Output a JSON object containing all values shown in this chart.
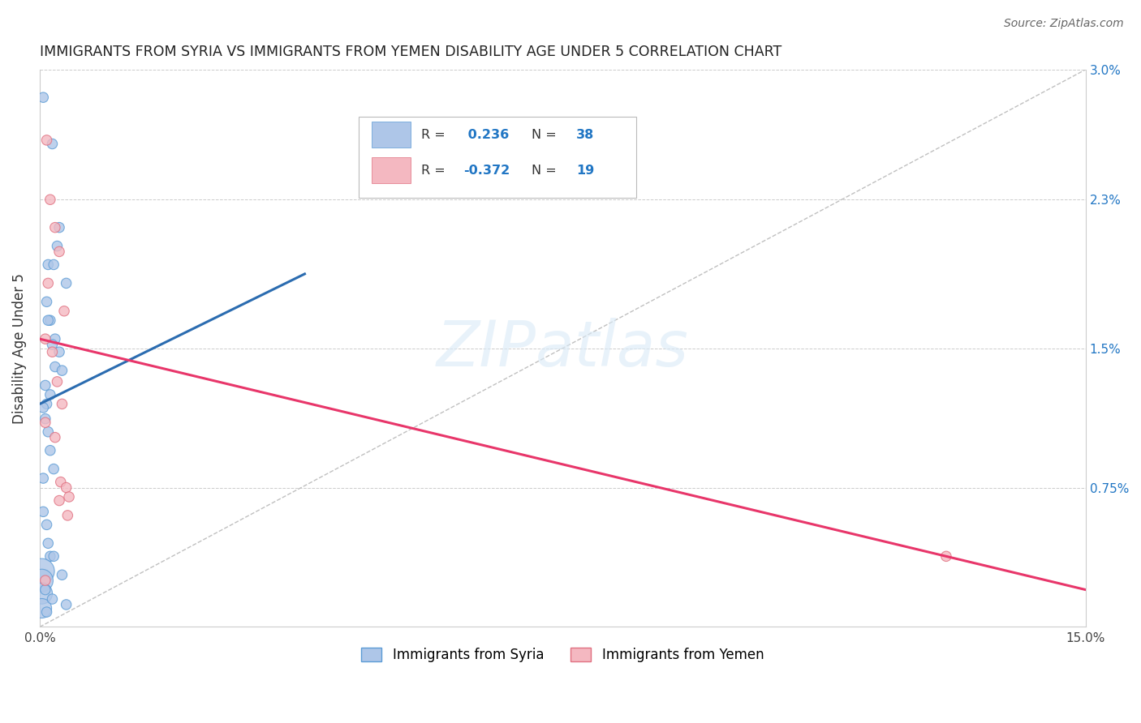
{
  "title": "IMMIGRANTS FROM SYRIA VS IMMIGRANTS FROM YEMEN DISABILITY AGE UNDER 5 CORRELATION CHART",
  "source": "Source: ZipAtlas.com",
  "ylabel": "Disability Age Under 5",
  "xlim": [
    0,
    0.15
  ],
  "ylim": [
    0,
    0.03
  ],
  "xticks": [
    0.0,
    0.03,
    0.06,
    0.09,
    0.12,
    0.15
  ],
  "xticklabels": [
    "0.0%",
    "",
    "",
    "",
    "",
    "15.0%"
  ],
  "ytick_vals": [
    0.0,
    0.0075,
    0.015,
    0.023,
    0.03
  ],
  "yticklabels_right": [
    "",
    "0.75%",
    "1.5%",
    "2.3%",
    "3.0%"
  ],
  "grid_color": "#cccccc",
  "background_color": "#ffffff",
  "syria_color": "#aec6e8",
  "syria_edge_color": "#5b9bd5",
  "yemen_color": "#f4b8c1",
  "yemen_edge_color": "#e07080",
  "syria_R": 0.236,
  "syria_N": 38,
  "yemen_R": -0.372,
  "yemen_N": 19,
  "legend_color": "#2176c4",
  "watermark_text": "ZIPatlas",
  "ref_line_color": "#c0c0c0",
  "syria_line_color": "#2b6cb0",
  "yemen_line_color": "#e8366a",
  "syria_x": [
    0.0005,
    0.0018,
    0.0028,
    0.0025,
    0.0012,
    0.002,
    0.0038,
    0.001,
    0.0015,
    0.0022,
    0.0012,
    0.0018,
    0.0028,
    0.0022,
    0.0032,
    0.0008,
    0.0015,
    0.001,
    0.0005,
    0.0008,
    0.0012,
    0.0015,
    0.002,
    0.0005,
    0.0005,
    0.001,
    0.0012,
    0.0015,
    0.0003,
    0.0003,
    0.0003,
    0.0003,
    0.002,
    0.0008,
    0.0032,
    0.0018,
    0.0038,
    0.001
  ],
  "syria_y": [
    0.0285,
    0.026,
    0.0215,
    0.0205,
    0.0195,
    0.0195,
    0.0185,
    0.0175,
    0.0165,
    0.0155,
    0.0165,
    0.0152,
    0.0148,
    0.014,
    0.0138,
    0.013,
    0.0125,
    0.012,
    0.0118,
    0.0112,
    0.0105,
    0.0095,
    0.0085,
    0.008,
    0.0062,
    0.0055,
    0.0045,
    0.0038,
    0.003,
    0.0025,
    0.0018,
    0.001,
    0.0038,
    0.002,
    0.0028,
    0.0015,
    0.0012,
    0.0008
  ],
  "syria_sizes": [
    80,
    80,
    80,
    80,
    80,
    80,
    80,
    80,
    80,
    80,
    80,
    80,
    80,
    80,
    80,
    80,
    80,
    80,
    80,
    80,
    80,
    80,
    80,
    80,
    80,
    80,
    80,
    80,
    500,
    400,
    350,
    300,
    80,
    80,
    80,
    80,
    80,
    80
  ],
  "yemen_x": [
    0.001,
    0.0015,
    0.0022,
    0.0028,
    0.0012,
    0.0035,
    0.0008,
    0.0018,
    0.0025,
    0.0032,
    0.0008,
    0.0022,
    0.003,
    0.0038,
    0.0042,
    0.0028,
    0.004,
    0.13,
    0.0008
  ],
  "yemen_y": [
    0.0262,
    0.023,
    0.0215,
    0.0202,
    0.0185,
    0.017,
    0.0155,
    0.0148,
    0.0132,
    0.012,
    0.011,
    0.0102,
    0.0078,
    0.0075,
    0.007,
    0.0068,
    0.006,
    0.0038,
    0.0025
  ],
  "yemen_sizes": [
    80,
    80,
    80,
    80,
    80,
    80,
    80,
    80,
    80,
    80,
    80,
    80,
    80,
    80,
    80,
    80,
    80,
    80,
    80
  ],
  "syria_line_x": [
    0.0,
    0.038
  ],
  "syria_line_y": [
    0.012,
    0.019
  ],
  "yemen_line_x": [
    0.0,
    0.15
  ],
  "yemen_line_y": [
    0.0155,
    0.002
  ]
}
